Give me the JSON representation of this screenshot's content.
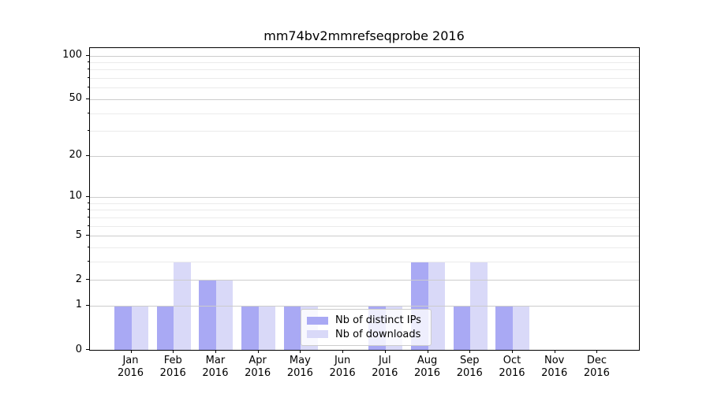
{
  "title": "mm74bv2mmrefseqprobe 2016",
  "chart_data": {
    "type": "bar",
    "title": "mm74bv2mmrefseqprobe 2016",
    "categories": [
      "Jan 2016",
      "Feb 2016",
      "Mar 2016",
      "Apr 2016",
      "May 2016",
      "Jun 2016",
      "Jul 2016",
      "Aug 2016",
      "Sep 2016",
      "Oct 2016",
      "Nov 2016",
      "Dec 2016"
    ],
    "series": [
      {
        "name": "Nb of distinct IPs",
        "color": "#a9a9f4",
        "values": [
          1,
          1,
          2,
          1,
          1,
          0,
          1,
          3,
          1,
          1,
          0,
          0
        ]
      },
      {
        "name": "Nb of downloads",
        "color": "#d9d9f8",
        "values": [
          1,
          3,
          2,
          1,
          1,
          0,
          1,
          3,
          3,
          1,
          0,
          0
        ]
      }
    ],
    "yscale": "log1p",
    "ylim": [
      0,
      114
    ],
    "y_major_ticks": [
      0,
      1,
      2,
      5,
      10,
      20,
      50,
      100
    ],
    "y_minor_gridlines": [
      3,
      4,
      6,
      7,
      8,
      9,
      30,
      40,
      60,
      70,
      80,
      90
    ],
    "grid": true,
    "legend_position": "lower-center",
    "xlabel": "",
    "ylabel": ""
  },
  "colors": {
    "axis": "#000000",
    "grid_major": "#cccccc",
    "grid_minor": "#ebebeb",
    "legend_border": "#cccccc",
    "legend_bg": "rgba(255,255,255,0.8)"
  }
}
